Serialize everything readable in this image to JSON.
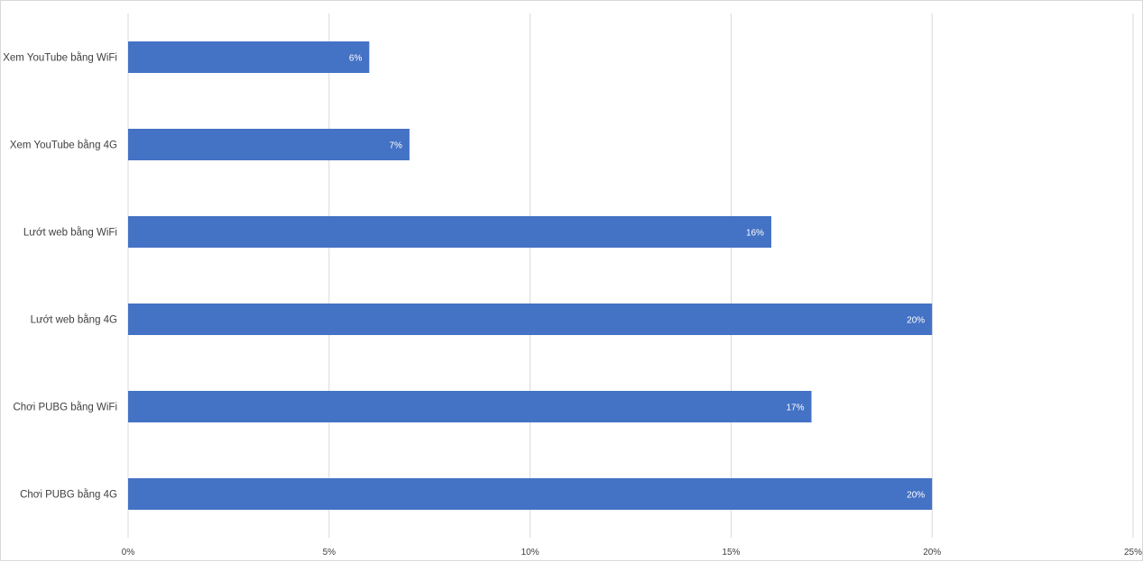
{
  "chart_data": {
    "type": "bar",
    "orientation": "horizontal",
    "categories": [
      "Xem YouTube bằng WiFi",
      "Xem YouTube bằng 4G",
      "Lướt web bằng WiFi",
      "Lướt web bằng 4G",
      "Chơi PUBG bằng WiFi",
      "Chơi PUBG bằng 4G"
    ],
    "values": [
      6,
      7,
      16,
      20,
      17,
      20
    ],
    "value_labels": [
      "6%",
      "7%",
      "16%",
      "20%",
      "17%",
      "20%"
    ],
    "xlim": [
      0,
      25
    ],
    "x_ticks": [
      0,
      5,
      10,
      15,
      20,
      25
    ],
    "x_tick_labels": [
      "0%",
      "5%",
      "10%",
      "15%",
      "20%",
      "25%"
    ],
    "grid": "vertical",
    "legend": "none",
    "title": "",
    "xlabel": "",
    "ylabel": ""
  },
  "colors": {
    "bar": "#4472c4",
    "grid": "#d9d9d9",
    "text": "#404040",
    "data_label": "#ffffff"
  }
}
